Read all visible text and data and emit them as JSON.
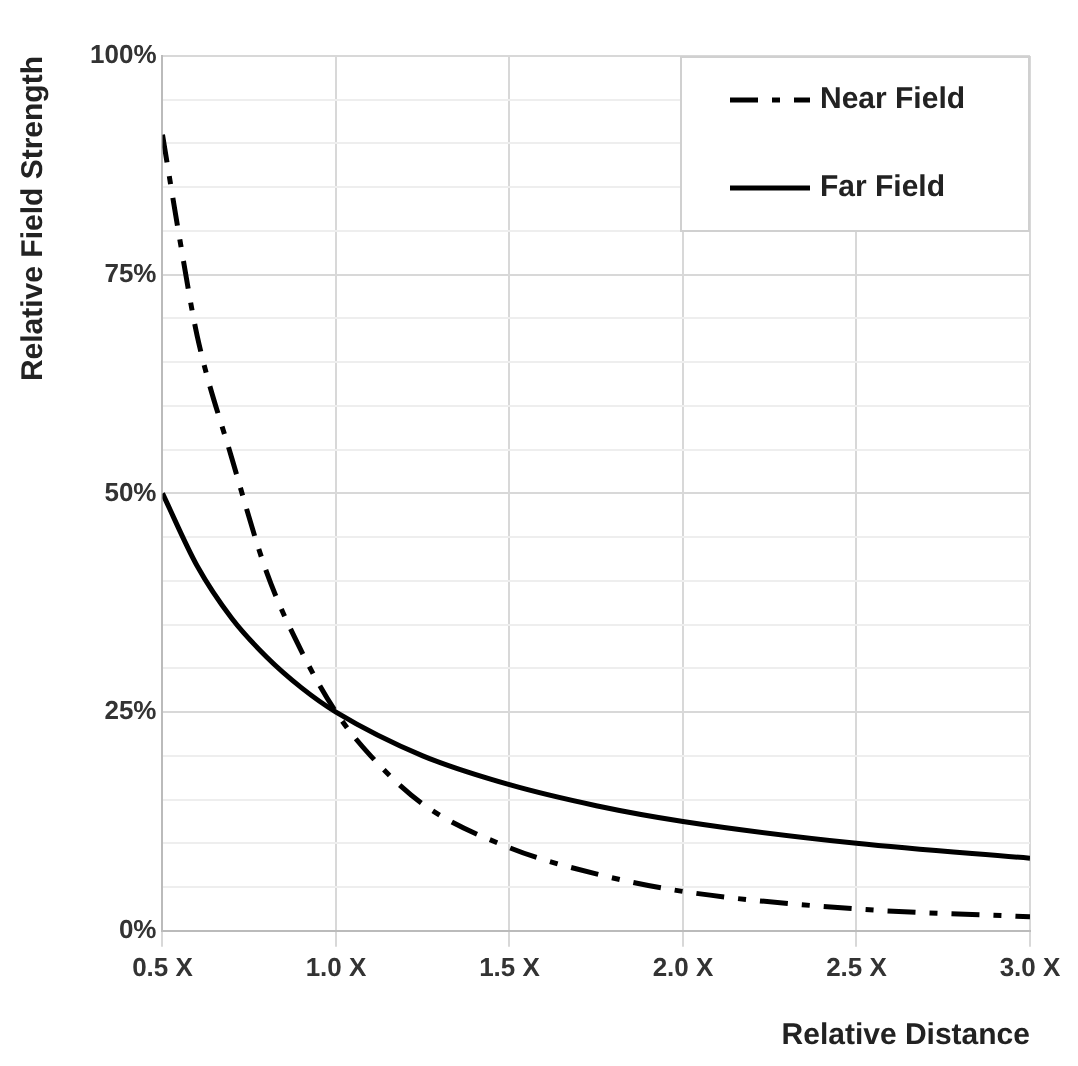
{
  "chart_data": {
    "type": "line",
    "xlabel": "Relative Distance",
    "ylabel": "Relative Field Strength",
    "xlim": [
      0.5,
      3.0
    ],
    "xticks": [
      {
        "value": 0.5,
        "label": "0.5 X"
      },
      {
        "value": 1.0,
        "label": "1.0 X"
      },
      {
        "value": 1.5,
        "label": "1.5 X"
      },
      {
        "value": 2.0,
        "label": "2.0 X"
      },
      {
        "value": 2.5,
        "label": "2.5 X"
      },
      {
        "value": 3.0,
        "label": "3.0 X"
      }
    ],
    "ylim": [
      0,
      100
    ],
    "yticks": [
      {
        "value": 0,
        "label": "0%"
      },
      {
        "value": 5,
        "label": null
      },
      {
        "value": 10,
        "label": null
      },
      {
        "value": 15,
        "label": null
      },
      {
        "value": 20,
        "label": null
      },
      {
        "value": 25,
        "label": "25%"
      },
      {
        "value": 30,
        "label": null
      },
      {
        "value": 35,
        "label": null
      },
      {
        "value": 40,
        "label": null
      },
      {
        "value": 45,
        "label": null
      },
      {
        "value": 50,
        "label": "50%"
      },
      {
        "value": 55,
        "label": null
      },
      {
        "value": 60,
        "label": null
      },
      {
        "value": 65,
        "label": null
      },
      {
        "value": 70,
        "label": null
      },
      {
        "value": 75,
        "label": "75%"
      },
      {
        "value": 80,
        "label": null
      },
      {
        "value": 85,
        "label": null
      },
      {
        "value": 90,
        "label": null
      },
      {
        "value": 95,
        "label": null
      },
      {
        "value": 100,
        "label": "100%"
      }
    ],
    "grid": true,
    "legend": "top right",
    "marker": "none",
    "series": [
      {
        "name": "Near Field",
        "color": "#000000",
        "line_style": "dashed",
        "x": [
          0.5,
          0.55,
          0.6,
          0.7,
          0.8,
          0.9,
          1.0,
          1.1,
          1.25,
          1.5,
          1.75,
          2.0,
          2.5,
          3.0
        ],
        "values": [
          91,
          79,
          68,
          54,
          41,
          32,
          25,
          20,
          14.5,
          9.5,
          6.5,
          4.5,
          2.5,
          1.6
        ]
      },
      {
        "name": "Far Field",
        "color": "#000000",
        "line_style": "solid",
        "x": [
          0.5,
          0.6,
          0.7,
          0.8,
          0.9,
          1.0,
          1.25,
          1.5,
          1.75,
          2.0,
          2.5,
          3.0
        ],
        "values": [
          50,
          41.7,
          35.7,
          31.3,
          27.8,
          25,
          20,
          16.7,
          14.3,
          12.5,
          10,
          8.3
        ]
      }
    ]
  }
}
